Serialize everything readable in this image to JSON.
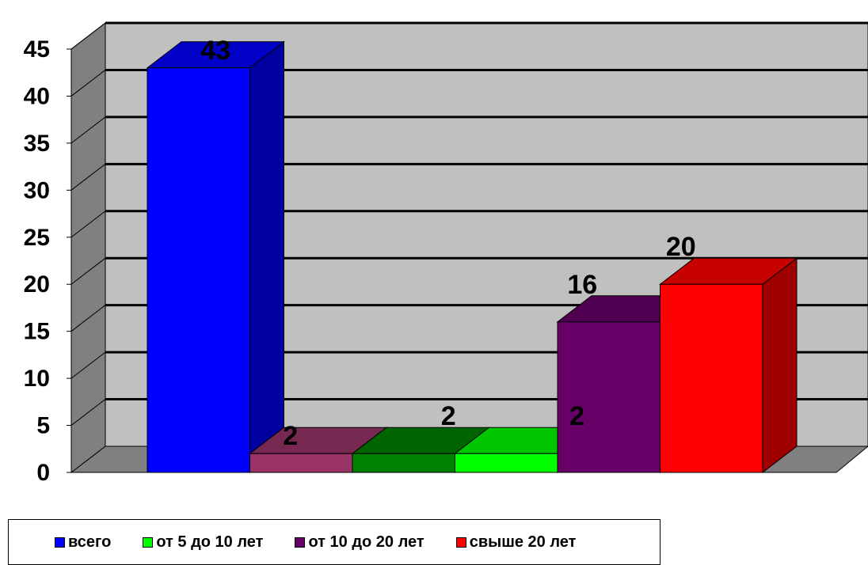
{
  "chart_data": {
    "type": "bar",
    "categories": [
      "всего",
      "",
      "",
      "от 5 до 10 лет",
      "от 10 до 20 лет",
      "свыше 20 лет"
    ],
    "values": [
      43,
      2,
      2,
      2,
      16,
      20
    ],
    "data_labels": [
      "43",
      "2",
      "2",
      "2",
      "16",
      "20"
    ],
    "colors": [
      "#0000ff",
      "#993366",
      "#008000",
      "#00ff00",
      "#660066",
      "#ff0000"
    ],
    "ylim": [
      0,
      45
    ],
    "yticks": [
      "0",
      "5",
      "10",
      "15",
      "20",
      "25",
      "30",
      "35",
      "40",
      "45"
    ],
    "grid": true,
    "style": "3d",
    "wall_color": "#c0c0c0",
    "legend_position": "bottom-left",
    "legend": [
      {
        "label": "всего",
        "color": "#0000ff"
      },
      {
        "label": "от 5 до 10 лет",
        "color": "#00ff00"
      },
      {
        "label": "от 10 до 20 лет",
        "color": "#660066"
      },
      {
        "label": "свыше 20 лет",
        "color": "#ff0000"
      }
    ]
  }
}
